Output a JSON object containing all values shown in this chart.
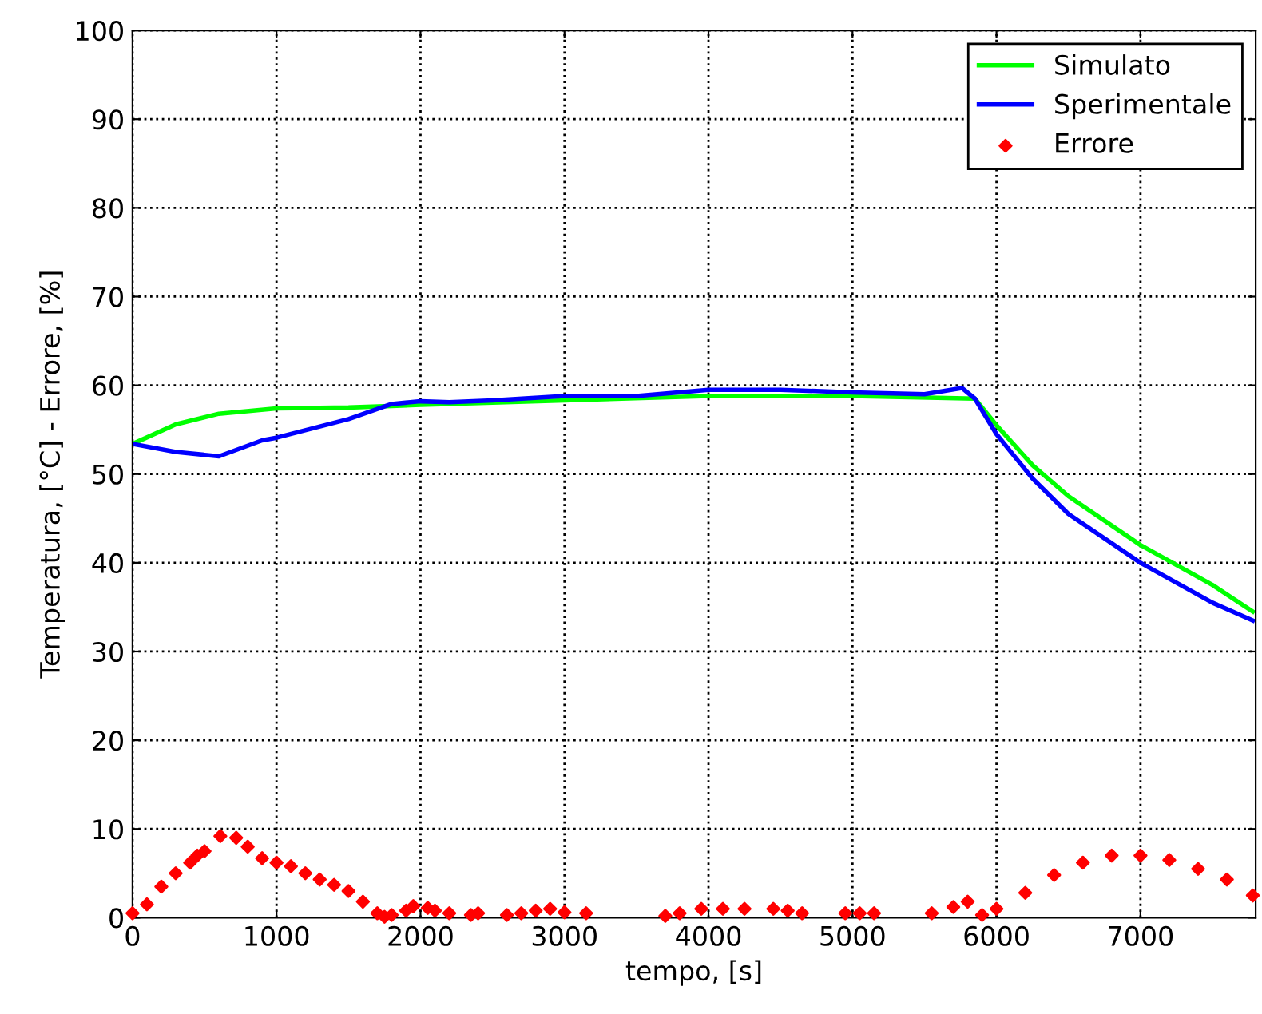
{
  "chart_data": {
    "type": "line",
    "xlabel": "tempo, [s]",
    "ylabel": "Temperatura, [°C] - Errore, [%]",
    "xlim": [
      0,
      7800
    ],
    "xticks": [
      0,
      1000,
      2000,
      3000,
      4000,
      5000,
      6000,
      7000
    ],
    "ylim": [
      0,
      100
    ],
    "yticks": [
      0,
      10,
      20,
      30,
      40,
      50,
      60,
      70,
      80,
      90,
      100
    ],
    "grid": true,
    "legend": "top right",
    "line_style": "solid",
    "series": [
      {
        "name": "Simulato",
        "color": "#00ff00",
        "x": [
          0,
          300,
          600,
          1000,
          1500,
          2000,
          3000,
          4000,
          5000,
          5850,
          6000,
          6250,
          6500,
          7000,
          7500,
          7780
        ],
        "values": [
          53.4,
          55.6,
          56.8,
          57.4,
          57.5,
          57.8,
          58.3,
          58.8,
          58.8,
          58.5,
          55.5,
          51,
          47.5,
          42,
          37.5,
          34.5
        ]
      },
      {
        "name": "Sperimentale",
        "color": "#0000ff",
        "x": [
          0,
          300,
          600,
          750,
          900,
          1000,
          1500,
          1800,
          2000,
          2200,
          2500,
          3000,
          3500,
          4000,
          4500,
          5000,
          5500,
          5760,
          5850,
          6000,
          6250,
          6500,
          7000,
          7500,
          7780
        ],
        "values": [
          53.4,
          52.5,
          52.0,
          52.9,
          53.8,
          54.1,
          56.2,
          57.9,
          58.2,
          58.1,
          58.3,
          58.8,
          58.8,
          59.5,
          59.5,
          59.2,
          59.0,
          59.7,
          58.5,
          54.5,
          49.5,
          45.5,
          40,
          35.5,
          33.5
        ]
      },
      {
        "name": "Errore",
        "type": "scatter",
        "marker": "diamond",
        "color": "#ff0000",
        "x": [
          0,
          100,
          200,
          300,
          400,
          450,
          500,
          610,
          720,
          800,
          900,
          1000,
          1100,
          1200,
          1300,
          1400,
          1500,
          1600,
          1700,
          1750,
          1800,
          1900,
          1950,
          2050,
          2100,
          2200,
          2350,
          2400,
          2600,
          2700,
          2800,
          2900,
          3000,
          3150,
          3700,
          3800,
          3950,
          4100,
          4250,
          4450,
          4550,
          4650,
          4950,
          5050,
          5150,
          5550,
          5700,
          5800,
          5900,
          6000,
          6200,
          6400,
          6600,
          6800,
          7000,
          7200,
          7400,
          7600,
          7780
        ],
        "values": [
          0.5,
          1.5,
          3.5,
          5,
          6.2,
          7.0,
          7.5,
          9.2,
          9.0,
          8,
          6.7,
          6.2,
          5.8,
          5,
          4.3,
          3.7,
          3,
          1.8,
          0.5,
          0.1,
          0.3,
          0.8,
          1.3,
          1.1,
          0.8,
          0.5,
          0.3,
          0.5,
          0.3,
          0.5,
          0.8,
          1.0,
          0.6,
          0.5,
          0.2,
          0.5,
          1.0,
          1.0,
          1.0,
          1.0,
          0.8,
          0.5,
          0.5,
          0.5,
          0.5,
          0.5,
          1.2,
          1.8,
          0.3,
          1.0,
          2.8,
          4.8,
          6.2,
          7.0,
          7.0,
          6.5,
          5.5,
          4.3,
          2.5
        ]
      }
    ]
  }
}
